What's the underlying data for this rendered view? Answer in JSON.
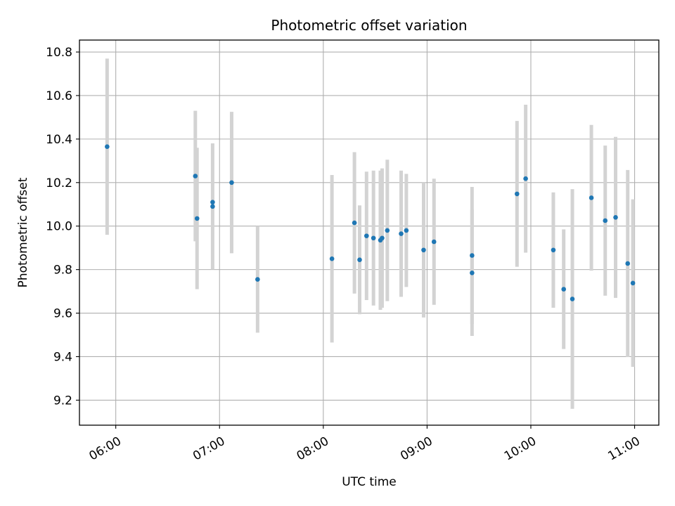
{
  "chart_data": {
    "type": "scatter",
    "title": "Photometric offset variation",
    "xlabel": "UTC time",
    "ylabel": "Photometric offset",
    "xlim": [
      "05:39",
      "11:14"
    ],
    "ylim": [
      9.085,
      10.855
    ],
    "x_ticks": [
      "06:00",
      "07:00",
      "08:00",
      "09:00",
      "10:00",
      "11:00"
    ],
    "y_ticks": [
      "9.2",
      "9.4",
      "9.6",
      "9.8",
      "10.0",
      "10.2",
      "10.4",
      "10.6",
      "10.8"
    ],
    "grid": true,
    "colors": {
      "point": "#1f77b4",
      "errorbar": "#d3d3d3",
      "grid": "#b0b0b0"
    },
    "points": [
      {
        "time": "05:55",
        "y": 10.365,
        "yerr": 0.405
      },
      {
        "time": "06:46",
        "y": 10.23,
        "yerr": 0.3
      },
      {
        "time": "06:47",
        "y": 10.035,
        "yerr": 0.325
      },
      {
        "time": "06:56",
        "y": 10.11,
        "yerr": 0.0
      },
      {
        "time": "06:56",
        "y": 10.09,
        "yerr": 0.29
      },
      {
        "time": "07:07",
        "y": 10.2,
        "yerr": 0.325
      },
      {
        "time": "07:22",
        "y": 9.755,
        "yerr": 0.245
      },
      {
        "time": "08:05",
        "y": 9.85,
        "yerr": 0.385
      },
      {
        "time": "08:18",
        "y": 10.015,
        "yerr": 0.325
      },
      {
        "time": "08:21",
        "y": 9.845,
        "yerr": 0.25
      },
      {
        "time": "08:25",
        "y": 9.955,
        "yerr": 0.295
      },
      {
        "time": "08:29",
        "y": 9.945,
        "yerr": 0.31
      },
      {
        "time": "08:33",
        "y": 9.935,
        "yerr": 0.32
      },
      {
        "time": "08:34",
        "y": 9.945,
        "yerr": 0.32
      },
      {
        "time": "08:37",
        "y": 9.98,
        "yerr": 0.325
      },
      {
        "time": "08:45",
        "y": 9.965,
        "yerr": 0.29
      },
      {
        "time": "08:48",
        "y": 9.98,
        "yerr": 0.26
      },
      {
        "time": "08:58",
        "y": 9.89,
        "yerr": 0.31
      },
      {
        "time": "09:04",
        "y": 9.928,
        "yerr": 0.29
      },
      {
        "time": "09:26",
        "y": 9.785,
        "yerr": 0.29
      },
      {
        "time": "09:26",
        "y": 9.865,
        "yerr": 0.315
      },
      {
        "time": "09:52",
        "y": 10.148,
        "yerr": 0.335
      },
      {
        "time": "09:57",
        "y": 10.218,
        "yerr": 0.34
      },
      {
        "time": "10:13",
        "y": 9.89,
        "yerr": 0.265
      },
      {
        "time": "10:19",
        "y": 9.71,
        "yerr": 0.275
      },
      {
        "time": "10:24",
        "y": 9.665,
        "yerr": 0.505
      },
      {
        "time": "10:35",
        "y": 10.13,
        "yerr": 0.335
      },
      {
        "time": "10:43",
        "y": 10.025,
        "yerr": 0.345
      },
      {
        "time": "10:49",
        "y": 10.04,
        "yerr": 0.37
      },
      {
        "time": "10:56",
        "y": 9.828,
        "yerr": 0.43
      },
      {
        "time": "10:59",
        "y": 9.738,
        "yerr": 0.385
      }
    ]
  }
}
